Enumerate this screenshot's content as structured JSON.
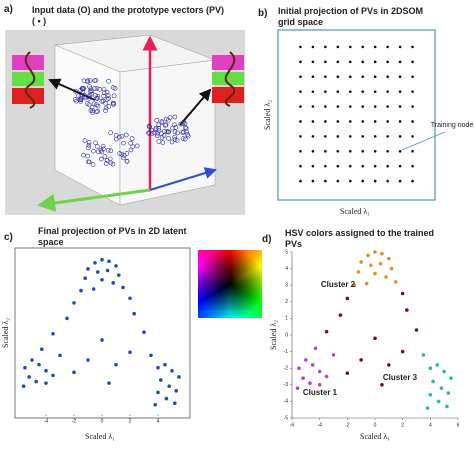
{
  "panel_labels": [
    "a)",
    "b)",
    "c)",
    "d)"
  ],
  "panel_a": {
    "title": "Input data (O) and the prototype vectors (PV) ( • )"
  },
  "chart_data": [
    {
      "type": "scatter",
      "title": "Initial projection of PVs in 2DSOM grid space",
      "x_label": "Scaled λ₁",
      "y_label": "Scaled λ₂",
      "annotation": "Training node",
      "color": "#111111",
      "xlim": [
        0,
        11
      ],
      "ylim": [
        0,
        11
      ],
      "x": [
        1,
        2,
        3,
        4,
        5,
        6,
        7,
        8,
        9,
        10,
        1,
        2,
        3,
        4,
        5,
        6,
        7,
        8,
        9,
        10,
        1,
        2,
        3,
        4,
        5,
        6,
        7,
        8,
        9,
        10,
        1,
        2,
        3,
        4,
        5,
        6,
        7,
        8,
        9,
        10,
        1,
        2,
        3,
        4,
        5,
        6,
        7,
        8,
        9,
        10,
        1,
        2,
        3,
        4,
        5,
        6,
        7,
        8,
        9,
        10,
        1,
        2,
        3,
        4,
        5,
        6,
        7,
        8,
        9,
        10,
        1,
        2,
        3,
        4,
        5,
        6,
        7,
        8,
        9,
        10,
        1,
        2,
        3,
        4,
        5,
        6,
        7,
        8,
        9,
        10,
        1,
        2,
        3,
        4,
        5,
        6,
        7,
        8,
        9,
        10
      ],
      "values": [
        1,
        1,
        1,
        1,
        1,
        1,
        1,
        1,
        1,
        1,
        2,
        2,
        2,
        2,
        2,
        2,
        2,
        2,
        2,
        2,
        3,
        3,
        3,
        3,
        3,
        3,
        3,
        3,
        3,
        3,
        4,
        4,
        4,
        4,
        4,
        4,
        4,
        4,
        4,
        4,
        5,
        5,
        5,
        5,
        5,
        5,
        5,
        5,
        5,
        5,
        6,
        6,
        6,
        6,
        6,
        6,
        6,
        6,
        6,
        6,
        7,
        7,
        7,
        7,
        7,
        7,
        7,
        7,
        7,
        7,
        8,
        8,
        8,
        8,
        8,
        8,
        8,
        8,
        8,
        8,
        9,
        9,
        9,
        9,
        9,
        9,
        9,
        9,
        9,
        9,
        10,
        10,
        10,
        10,
        10,
        10,
        10,
        10,
        10,
        10
      ]
    },
    {
      "type": "scatter",
      "title": "Final projection of PVs in 2D latent space",
      "x_label": "Scaled λ₁",
      "y_label": "Scaled λ₂",
      "color": "#1f4fb4",
      "xlim": [
        -6,
        6
      ],
      "ylim": [
        -5,
        5.5
      ],
      "xticks": [
        -4,
        -2,
        0,
        2,
        4
      ],
      "x": [
        -0.5,
        0,
        0.5,
        1,
        -1,
        -0.3,
        0.4,
        1.2,
        -1.2,
        0,
        0.8,
        1.5,
        -1.5,
        -0.6,
        2,
        -2,
        2.3,
        -2.5,
        -3.5,
        3,
        0,
        -1,
        1,
        2,
        -2,
        0.5,
        -5.5,
        -5,
        -4.5,
        -4,
        -5.2,
        -4.7,
        -4,
        -5.6,
        -3.5,
        -3,
        -4.3,
        4,
        4.5,
        5,
        5.5,
        4.2,
        4.8,
        5.3,
        4,
        4.6,
        5.2,
        3.5,
        3.8
      ],
      "values": [
        4.8,
        5,
        4.9,
        4.6,
        4.4,
        4.2,
        4.3,
        4,
        3.8,
        3.7,
        3.5,
        3.2,
        3,
        3.1,
        2.5,
        2.2,
        1.5,
        1.2,
        0.2,
        0.3,
        -0.2,
        -1.5,
        -1.8,
        -1,
        -2.3,
        -3,
        -2,
        -1.5,
        -1.8,
        -2.2,
        -2.6,
        -2.9,
        -3,
        -3.2,
        -2.5,
        -1.2,
        -0.8,
        -2,
        -1.8,
        -2.2,
        -2.6,
        -2.8,
        -3.2,
        -3.5,
        -3.6,
        -4,
        -4.3,
        -1.2,
        -4.4
      ]
    },
    {
      "type": "scatter",
      "title": "HSV colors assigned to the trained PVs",
      "x_label": "Scaled λ₁",
      "y_label": "Scaled λ₂",
      "xlim": [
        -6,
        6
      ],
      "ylim": [
        -5,
        5
      ],
      "xticks": [
        -6,
        -4,
        -2,
        0,
        2,
        4,
        6
      ],
      "yticks": [
        -5,
        -4,
        -3,
        -2,
        -1,
        0,
        1,
        2,
        3,
        4,
        5
      ],
      "series": [
        {
          "name": "Cluster 2",
          "color": "#e8901a",
          "x": [
            -0.5,
            0,
            0.5,
            1,
            -1,
            -0.3,
            0.4,
            1.2,
            -1.2,
            0,
            0.8,
            1.5,
            -1.5,
            -0.6
          ],
          "values": [
            4.8,
            5,
            4.9,
            4.6,
            4.4,
            4.2,
            4.3,
            4,
            3.8,
            3.7,
            3.5,
            3.2,
            3,
            3.1
          ]
        },
        {
          "color": "#6a1a1a",
          "x": [
            2,
            -2,
            2.3,
            -2.5,
            -3.5,
            3,
            0,
            -1,
            1,
            2,
            -2,
            0.5
          ],
          "values": [
            2.5,
            2.2,
            1.5,
            1.2,
            0.2,
            0.3,
            -0.2,
            -1.5,
            -1.8,
            -1,
            -2.3,
            -3
          ]
        },
        {
          "name": "Cluster 1",
          "color": "#c040c0",
          "x": [
            -5.5,
            -5,
            -4.5,
            -4,
            -5.2,
            -4.7,
            -4,
            -5.6,
            -3.5,
            -3,
            -4.3
          ],
          "values": [
            -2,
            -1.5,
            -1.8,
            -2.2,
            -2.6,
            -2.9,
            -3,
            -3.2,
            -2.5,
            -1.2,
            -0.8
          ]
        },
        {
          "name": "Cluster 3",
          "color": "#20c0a0",
          "x": [
            4,
            4.5,
            5,
            5.5,
            4.2,
            4.8,
            5.3,
            4,
            4.6,
            5.2,
            3.5,
            3.8
          ],
          "values": [
            -2,
            -1.8,
            -2.2,
            -2.6,
            -2.8,
            -3.2,
            -3.5,
            -3.6,
            -4,
            -4.3,
            -1.2,
            -4.4
          ]
        }
      ]
    }
  ]
}
